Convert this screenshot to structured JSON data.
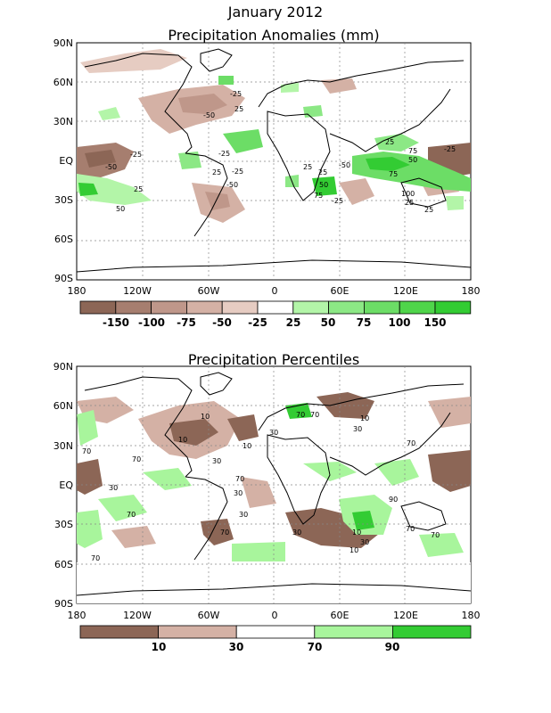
{
  "title": "January 2012",
  "panels": [
    {
      "title": "Precipitation Anomalies (mm)",
      "lat_labels": [
        "90N",
        "60N",
        "30N",
        "EQ",
        "30S",
        "60S",
        "90S"
      ],
      "lon_labels": [
        "180",
        "120W",
        "60W",
        "0",
        "60E",
        "120E",
        "180"
      ],
      "colorbar": {
        "colors": [
          "#8c6656",
          "#a67e6f",
          "#bf978a",
          "#d4b1a5",
          "#e6ccc2",
          "#ffffff",
          "#b3f5a8",
          "#8ce885",
          "#6cdd66",
          "#4fd54a",
          "#33cc33"
        ],
        "labels": [
          "-150",
          "-100",
          "-75",
          "-50",
          "-25",
          "25",
          "50",
          "75",
          "100",
          "150"
        ]
      },
      "contour_labels": [
        "-50",
        "-25",
        "-25",
        "-50",
        "25",
        "-25",
        "-50",
        "50",
        "25",
        "-25",
        "25",
        "25",
        "50",
        "75",
        "-50",
        "25",
        "50",
        "75",
        "100",
        "25",
        "-25",
        "25",
        "75",
        "-25",
        "25"
      ]
    },
    {
      "title": "Precipitation Percentiles",
      "lat_labels": [
        "90N",
        "60N",
        "30N",
        "EQ",
        "30S",
        "60S",
        "90S"
      ],
      "lon_labels": [
        "180",
        "120W",
        "60W",
        "0",
        "60E",
        "120E",
        "180"
      ],
      "colorbar": {
        "colors": [
          "#8c6656",
          "#d4b1a5",
          "#ffffff",
          "#a8f59c",
          "#33cc33"
        ],
        "labels": [
          "10",
          "30",
          "70",
          "90"
        ]
      },
      "contour_labels": [
        "70",
        "10",
        "30",
        "70",
        "10",
        "30",
        "10",
        "10",
        "30",
        "70",
        "70",
        "30",
        "30",
        "70",
        "70",
        "30",
        "70",
        "10",
        "30",
        "90",
        "70",
        "30",
        "10",
        "70",
        "70",
        "70"
      ]
    }
  ],
  "colors": {
    "dry": "#8c6656",
    "dry_light": "#d4b1a5",
    "wet_light": "#a8f59c",
    "wet": "#33cc33"
  }
}
